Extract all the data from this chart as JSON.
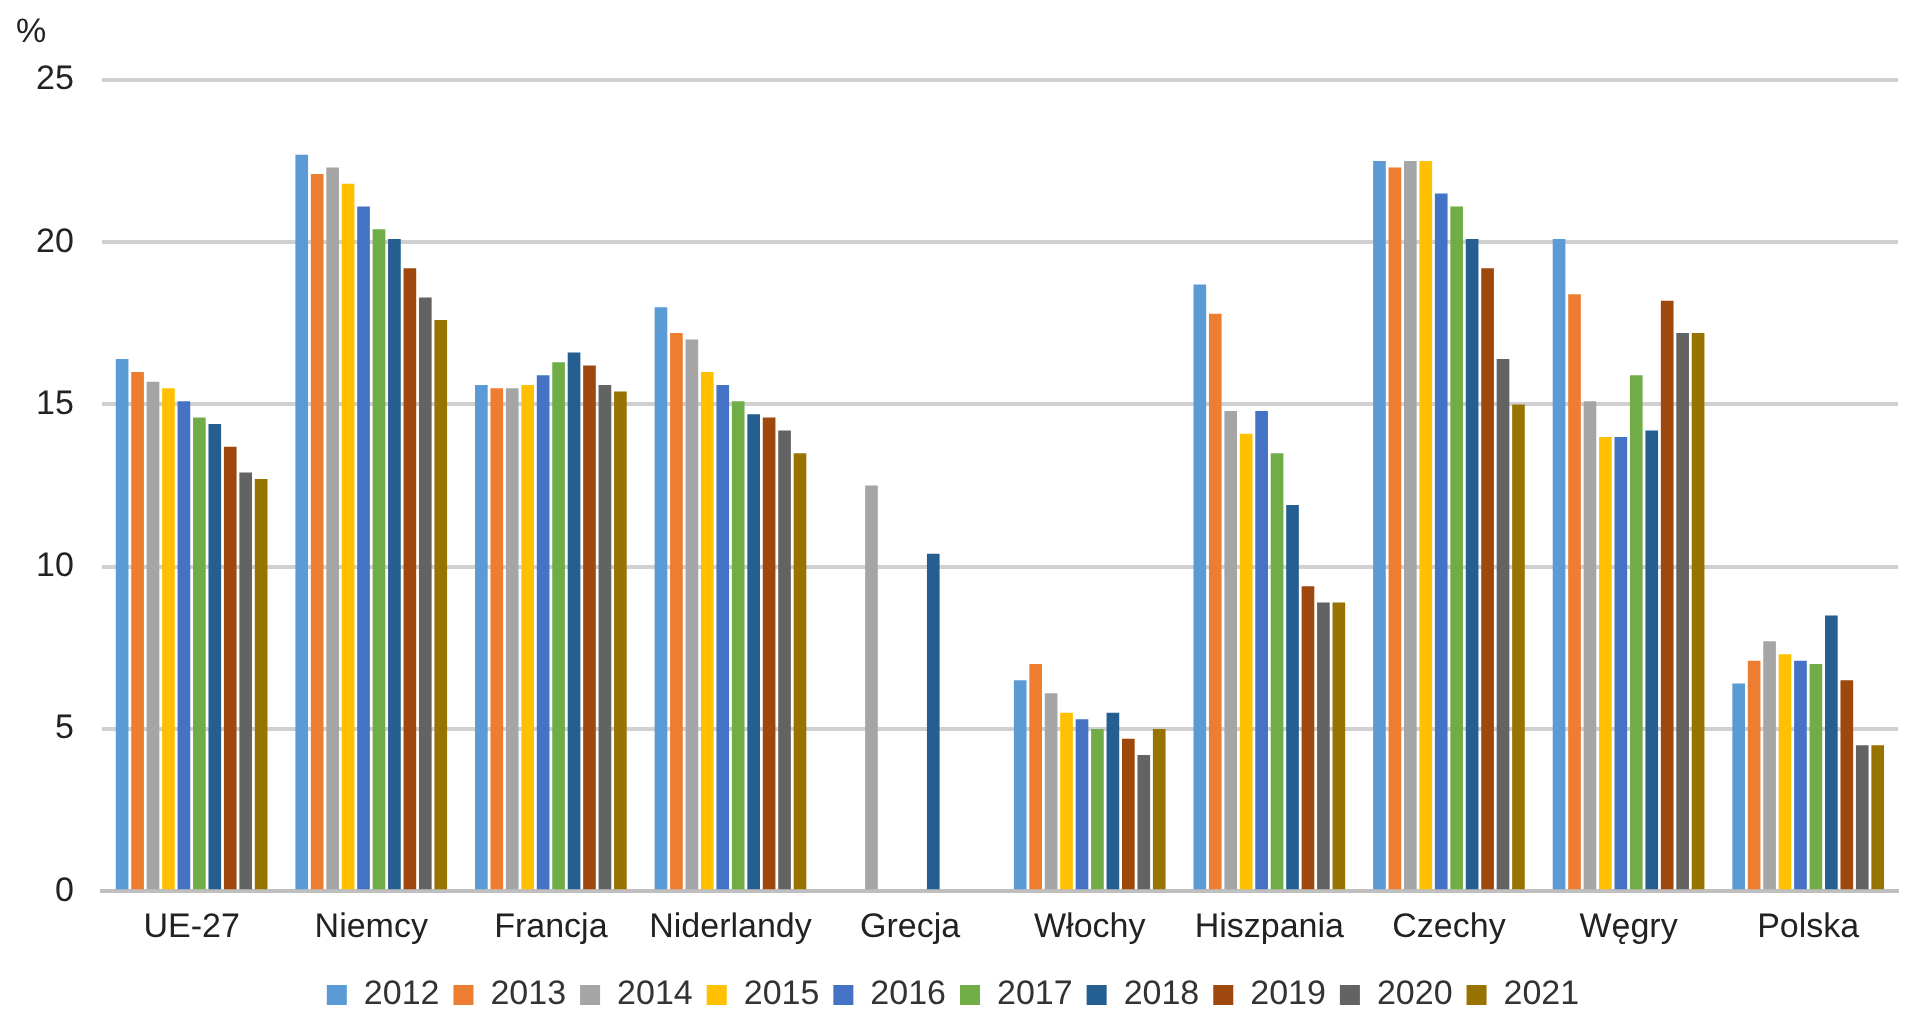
{
  "chart_data": {
    "type": "bar",
    "ylabel": "%",
    "categories": [
      "UE-27",
      "Niemcy",
      "Francja",
      "Niderlandy",
      "Grecja",
      "Włochy",
      "Hiszpania",
      "Czechy",
      "Węgry",
      "Polska"
    ],
    "series": [
      {
        "name": "2012",
        "color": "#5b9bd5",
        "values": [
          16.4,
          22.7,
          15.6,
          18.0,
          null,
          6.5,
          18.7,
          22.5,
          20.1,
          6.4
        ]
      },
      {
        "name": "2013",
        "color": "#ed7d31",
        "values": [
          16.0,
          22.1,
          15.5,
          17.2,
          null,
          7.0,
          17.8,
          22.3,
          18.4,
          7.1
        ]
      },
      {
        "name": "2014",
        "color": "#a5a5a5",
        "values": [
          15.7,
          22.3,
          15.5,
          17.0,
          12.5,
          6.1,
          14.8,
          22.5,
          15.1,
          7.7
        ]
      },
      {
        "name": "2015",
        "color": "#ffc000",
        "values": [
          15.5,
          21.8,
          15.6,
          16.0,
          null,
          5.5,
          14.1,
          22.5,
          14.0,
          7.3
        ]
      },
      {
        "name": "2016",
        "color": "#4472c4",
        "values": [
          15.1,
          21.1,
          15.9,
          15.6,
          null,
          5.3,
          14.8,
          21.5,
          14.0,
          7.1
        ]
      },
      {
        "name": "2017",
        "color": "#70ad47",
        "values": [
          14.6,
          20.4,
          16.3,
          15.1,
          null,
          5.0,
          13.5,
          21.1,
          15.9,
          7.0
        ]
      },
      {
        "name": "2018",
        "color": "#255e91",
        "values": [
          14.4,
          20.1,
          16.6,
          14.7,
          10.4,
          5.5,
          11.9,
          20.1,
          14.2,
          8.5
        ]
      },
      {
        "name": "2019",
        "color": "#9e480e",
        "values": [
          13.7,
          19.2,
          16.2,
          14.6,
          null,
          4.7,
          9.4,
          19.2,
          18.2,
          6.5
        ]
      },
      {
        "name": "2020",
        "color": "#636363",
        "values": [
          12.9,
          18.3,
          15.6,
          14.2,
          null,
          4.2,
          8.9,
          16.4,
          17.2,
          4.5
        ]
      },
      {
        "name": "2021",
        "color": "#997300",
        "values": [
          12.7,
          17.6,
          15.4,
          13.5,
          null,
          5.0,
          8.9,
          15.0,
          17.2,
          4.5
        ]
      }
    ],
    "ylim": [
      0,
      25
    ],
    "yticks": [
      0,
      5,
      10,
      15,
      20,
      25
    ],
    "grid": "y",
    "legend": "bottom"
  }
}
